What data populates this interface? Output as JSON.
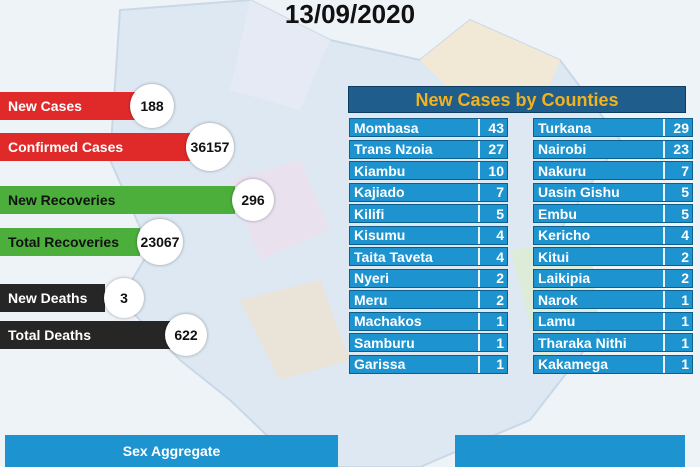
{
  "date": "13/09/2020",
  "stats": [
    {
      "label": "New Cases",
      "value": "188"
    },
    {
      "label": "Confirmed Cases",
      "value": "36157"
    },
    {
      "label": "New Recoveries",
      "value": "296"
    },
    {
      "label": "Total Recoveries",
      "value": "23067"
    },
    {
      "label": "New Deaths",
      "value": "3"
    },
    {
      "label": "Total Deaths",
      "value": "622"
    }
  ],
  "counties": {
    "title": "New Cases by Counties",
    "left": [
      [
        "Mombasa",
        "43"
      ],
      [
        "Trans Nzoia",
        "27"
      ],
      [
        "Kiambu",
        "10"
      ],
      [
        "Kajiado",
        "7"
      ],
      [
        "Kilifi",
        "5"
      ],
      [
        "Kisumu",
        "4"
      ],
      [
        "Taita Taveta",
        "4"
      ],
      [
        "Nyeri",
        "2"
      ],
      [
        "Meru",
        "2"
      ],
      [
        "Machakos",
        "1"
      ],
      [
        "Samburu",
        "1"
      ],
      [
        "Garissa",
        "1"
      ]
    ],
    "right": [
      [
        "Turkana",
        "29"
      ],
      [
        "Nairobi",
        "23"
      ],
      [
        "Nakuru",
        "7"
      ],
      [
        "Uasin Gishu",
        "5"
      ],
      [
        "Embu",
        "5"
      ],
      [
        "Kericho",
        "4"
      ],
      [
        "Kitui",
        "2"
      ],
      [
        "Laikipia",
        "2"
      ],
      [
        "Narok",
        "1"
      ],
      [
        "Lamu",
        "1"
      ],
      [
        "Tharaka Nithi",
        "1"
      ],
      [
        "Kakamega",
        "1"
      ]
    ]
  },
  "footer": {
    "sex_aggregate": "Sex Aggregate"
  }
}
